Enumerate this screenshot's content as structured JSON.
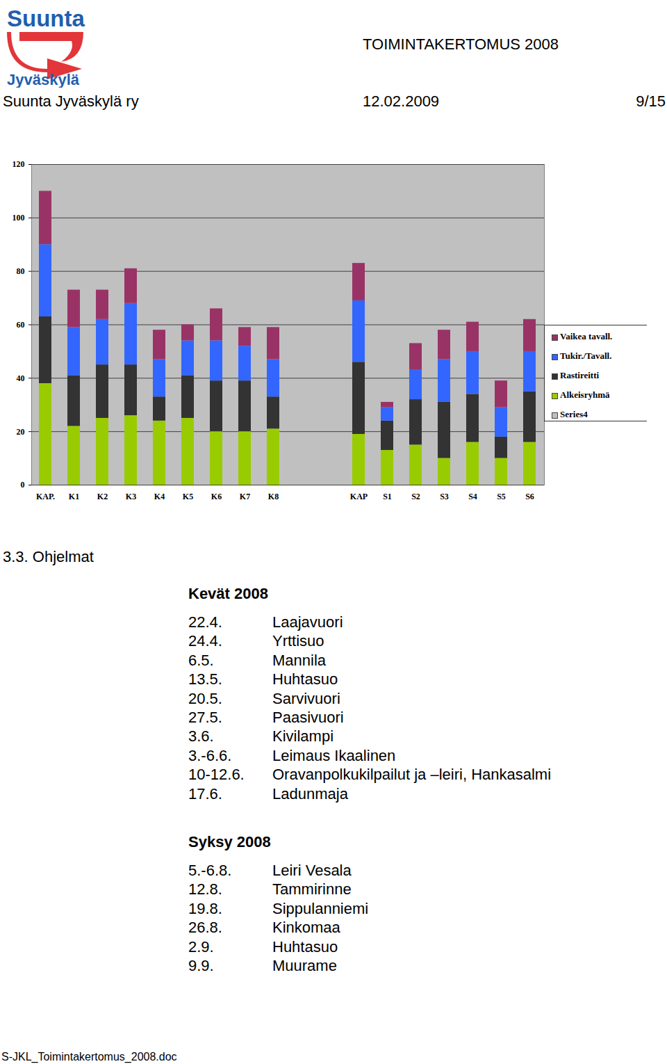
{
  "header": {
    "logo": [
      "Suunta",
      "Jyväskylä"
    ],
    "title": "TOIMINTAKERTOMUS 2008",
    "organization": "Suunta Jyväskylä ry",
    "date": "12.02.2009",
    "page": "9/15"
  },
  "chart_data": {
    "type": "bar",
    "stacked": true,
    "grid": true,
    "legend": "right",
    "categories": [
      "KAP.",
      "K1",
      "K2",
      "K3",
      "K4",
      "K5",
      "K6",
      "K7",
      "K8",
      null,
      null,
      "KAP",
      "S1",
      "S2",
      "S3",
      "S4",
      "S5",
      "S6"
    ],
    "series": [
      {
        "name": "Vaikea tavall.",
        "color": "#993366",
        "values": [
          20,
          14,
          11,
          13,
          11,
          6,
          12,
          7,
          12,
          null,
          null,
          14,
          2,
          10,
          11,
          11,
          10,
          12
        ]
      },
      {
        "name": "Tukir./Tavall.",
        "color": "#3366ff",
        "values": [
          27,
          18,
          17,
          23,
          14,
          13,
          15,
          13,
          14,
          null,
          null,
          23,
          5,
          11,
          16,
          16,
          11,
          15
        ]
      },
      {
        "name": "Rastireitti",
        "color": "#333333",
        "values": [
          25,
          19,
          20,
          19,
          9,
          16,
          19,
          19,
          12,
          null,
          null,
          27,
          11,
          17,
          21,
          18,
          8,
          19
        ]
      },
      {
        "name": "Alkeisryhmä",
        "color": "#99cc00",
        "values": [
          38,
          22,
          25,
          26,
          24,
          25,
          20,
          20,
          21,
          null,
          null,
          19,
          13,
          15,
          10,
          16,
          10,
          16
        ]
      },
      {
        "name": "Series4",
        "color": "#c0c0c0",
        "values": [
          null,
          null,
          null,
          null,
          null,
          null,
          null,
          null,
          null,
          null,
          null,
          null,
          null,
          null,
          null,
          null,
          null,
          null
        ]
      }
    ],
    "ylim": [
      0,
      120
    ],
    "yticks": [
      0,
      20,
      40,
      60,
      80,
      100,
      120
    ]
  },
  "section": {
    "heading": "3.3. Ohjelmat",
    "groups": [
      {
        "title": "Kevät 2008",
        "items": [
          [
            "22.4.",
            "Laajavuori"
          ],
          [
            "24.4.",
            "Yrttisuo"
          ],
          [
            "6.5.",
            "Mannila"
          ],
          [
            "13.5.",
            "Huhtasuo"
          ],
          [
            "20.5.",
            "Sarvivuori"
          ],
          [
            "27.5.",
            "Paasivuori"
          ],
          [
            "3.6.",
            "Kivilampi"
          ],
          [
            "3.-6.6.",
            "Leimaus Ikaalinen"
          ],
          [
            "10-12.6.",
            "Oravanpolkukilpailut ja –leiri, Hankasalmi"
          ],
          [
            "17.6.",
            "Ladunmaja"
          ]
        ]
      },
      {
        "title": "Syksy 2008",
        "items": [
          [
            "5.-6.8.",
            "Leiri Vesala"
          ],
          [
            "12.8.",
            "Tammirinne"
          ],
          [
            "19.8.",
            "Sippulanniemi"
          ],
          [
            "26.8.",
            "Kinkomaa"
          ],
          [
            "2.9.",
            "Huhtasuo"
          ],
          [
            "9.9.",
            "Muurame"
          ]
        ]
      }
    ]
  },
  "footer": "S-JKL_Toimintakertomus_2008.doc"
}
